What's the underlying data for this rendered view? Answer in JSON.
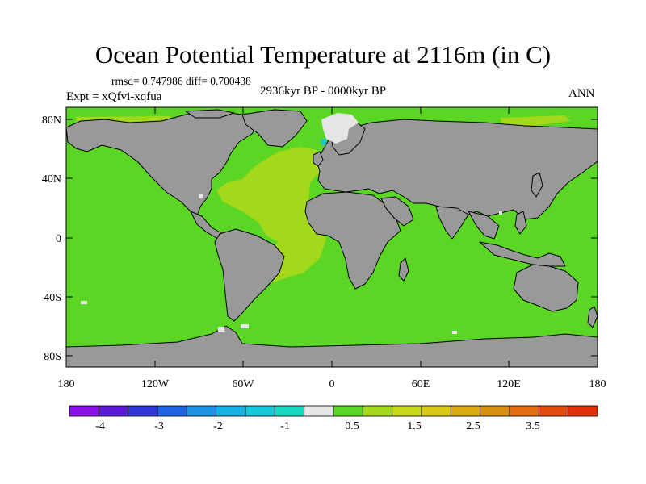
{
  "title": "Ocean Potential Temperature at 2116m (in C)",
  "stats": "rmsd= 0.747986 diff= 0.700438",
  "experiment": "Expt = xQfvi-xqfua",
  "period": "2936kyr BP - 0000kyr BP",
  "season": "ANN",
  "lat_ticks": [
    "80N",
    "40N",
    "0",
    "40S",
    "80S"
  ],
  "lon_ticks": [
    "180",
    "120W",
    "60W",
    "0",
    "60E",
    "120E",
    "180"
  ],
  "colorbar": {
    "colors": [
      "#8a12e6",
      "#5b1ad8",
      "#3235d6",
      "#1e64e0",
      "#1c93e0",
      "#18b2e0",
      "#18c8d8",
      "#17d8c0",
      "#e6e6e6",
      "#5bd625",
      "#a4d81a",
      "#c8d81a",
      "#d8c81a",
      "#d8ac12",
      "#d89012",
      "#e07012",
      "#e04c12",
      "#e0300c"
    ],
    "labels": [
      "-4",
      "-3",
      "-2",
      "-1",
      "0.5",
      "1.5",
      "2.5",
      "3.5"
    ]
  },
  "field_colors": {
    "ocean": "#5bd625",
    "atlantic": "#a4d81a",
    "land": "#999999",
    "arctic_sea_ice": "#e6e6e6",
    "coast": "#000000"
  }
}
